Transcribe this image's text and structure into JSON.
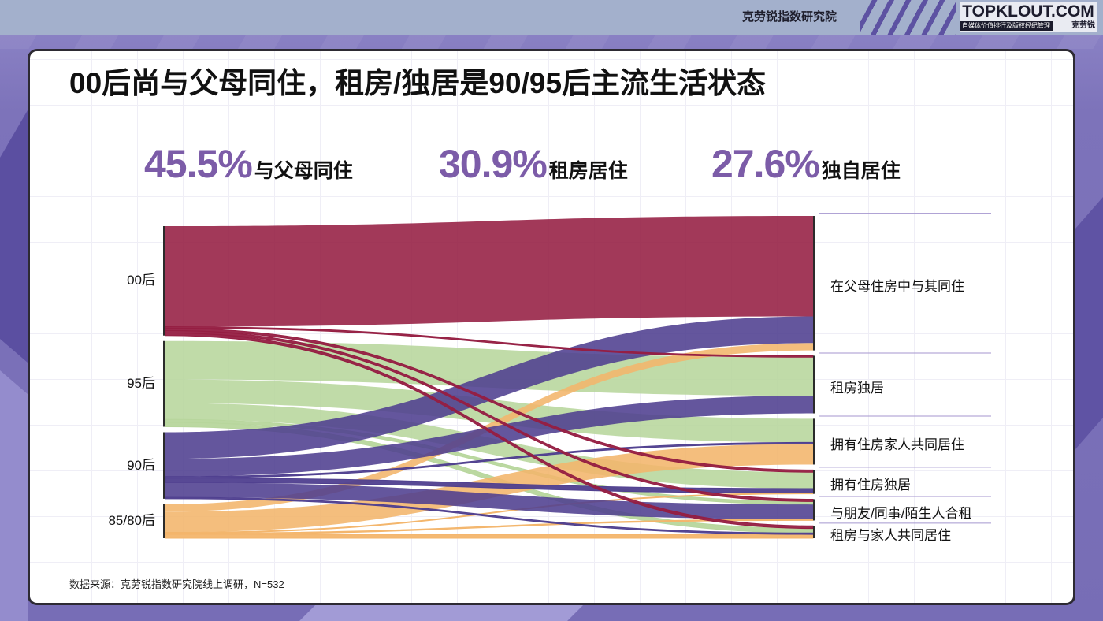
{
  "header": {
    "org_name": "克劳锐指数研究院",
    "logo_name": "TOPKLOUT.COM",
    "logo_tagline": "自媒体价值排行及版权经纪管理",
    "logo_brand": "克劳锐"
  },
  "slide": {
    "title": "00后尚与父母同住，租房/独居是90/95后主流生活状态",
    "source_note": "数据来源：克劳锐指数研究院线上调研，N=532"
  },
  "highlights": [
    {
      "value": "45.5%",
      "label": "与父母同住"
    },
    {
      "value": "30.9%",
      "label": "租房居住"
    },
    {
      "value": "27.6%",
      "label": "独自居住"
    }
  ],
  "colors": {
    "highlight": "#7c5ca8",
    "node_bar": "#2b2b2b",
    "divider": "#a596cf"
  },
  "chart_data": {
    "type": "sankey",
    "sources": [
      {
        "name": "00后",
        "value": 37.0,
        "color": "#951e42"
      },
      {
        "name": "95后",
        "value": 29.0,
        "color": "#b7d69c"
      },
      {
        "name": "90后",
        "value": 22.5,
        "color": "#4f3f8f"
      },
      {
        "name": "85/80后",
        "value": 11.5,
        "color": "#f3b56b"
      }
    ],
    "targets": [
      {
        "name": "在父母住房中与其同住",
        "value": 45.5
      },
      {
        "name": "租房独居",
        "value": 19.5
      },
      {
        "name": "拥有住房家人共同居住",
        "value": 15.5
      },
      {
        "name": "拥有住房独居",
        "value": 8.1
      },
      {
        "name": "与朋友/同事/陌生人合租",
        "value": 7.2
      },
      {
        "name": "租房与家人共同居住",
        "value": 4.2
      }
    ],
    "links": [
      {
        "source": 0,
        "target": 0,
        "value": 34.0
      },
      {
        "source": 0,
        "target": 1,
        "value": 0.5
      },
      {
        "source": 0,
        "target": 3,
        "value": 0.8
      },
      {
        "source": 0,
        "target": 4,
        "value": 0.8
      },
      {
        "source": 0,
        "target": 5,
        "value": 0.9
      },
      {
        "source": 1,
        "target": 1,
        "value": 13.0
      },
      {
        "source": 1,
        "target": 2,
        "value": 8.0
      },
      {
        "source": 1,
        "target": 3,
        "value": 5.5
      },
      {
        "source": 1,
        "target": 4,
        "value": 1.0
      },
      {
        "source": 1,
        "target": 5,
        "value": 1.5
      },
      {
        "source": 2,
        "target": 0,
        "value": 9.0
      },
      {
        "source": 2,
        "target": 1,
        "value": 6.0
      },
      {
        "source": 2,
        "target": 2,
        "value": 0.5
      },
      {
        "source": 2,
        "target": 3,
        "value": 1.5
      },
      {
        "source": 2,
        "target": 4,
        "value": 5.0
      },
      {
        "source": 2,
        "target": 5,
        "value": 0.5
      },
      {
        "source": 3,
        "target": 0,
        "value": 2.5
      },
      {
        "source": 3,
        "target": 2,
        "value": 7.0
      },
      {
        "source": 3,
        "target": 3,
        "value": 0.3
      },
      {
        "source": 3,
        "target": 4,
        "value": 0.4
      },
      {
        "source": 3,
        "target": 5,
        "value": 1.3
      }
    ]
  }
}
